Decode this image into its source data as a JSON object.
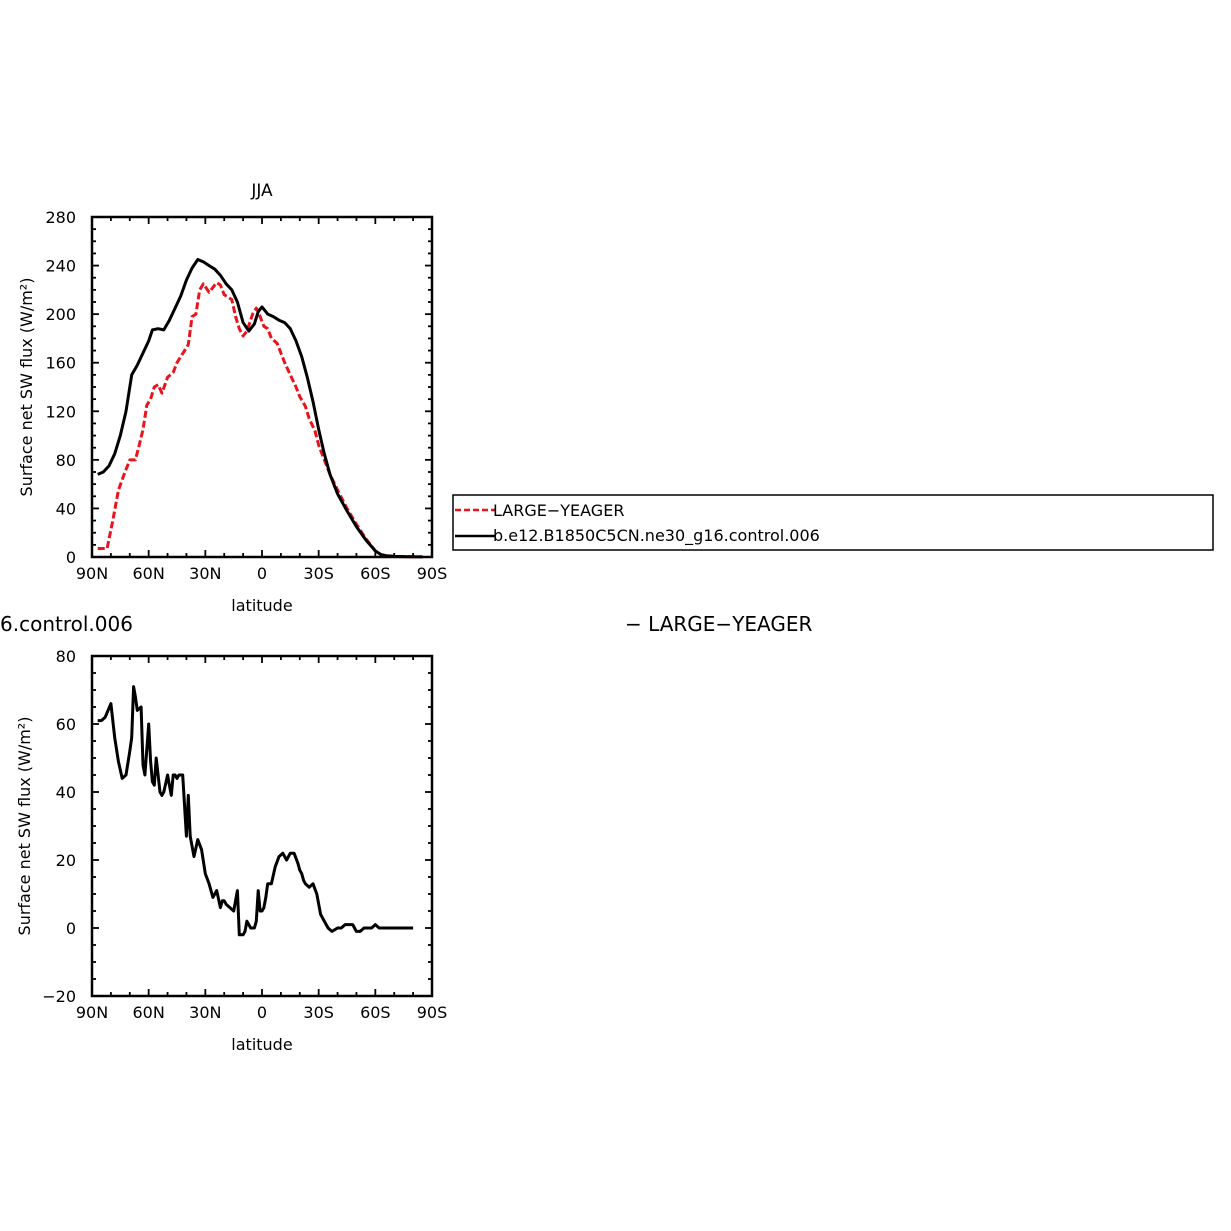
{
  "chart_data": [
    {
      "type": "line",
      "title": "JJA",
      "xlabel": "latitude",
      "ylabel": "Surface net SW flux (W/m²)",
      "xlim": [
        90,
        -90
      ],
      "ylim": [
        0,
        280
      ],
      "xticks": [
        90,
        60,
        30,
        0,
        -30,
        -60,
        -90
      ],
      "xtick_labels": [
        "90N",
        "60N",
        "30N",
        "0",
        "30S",
        "60S",
        "90S"
      ],
      "yticks": [
        0,
        40,
        80,
        120,
        160,
        200,
        240,
        280
      ],
      "ytick_labels": [
        "0",
        "40",
        "80",
        "120",
        "160",
        "200",
        "240",
        "280"
      ],
      "legend_position": "right, outside",
      "series": [
        {
          "name": "LARGE−YEAGER",
          "color": "#e8141e",
          "style": "dashed",
          "x": [
            87,
            82,
            79,
            76,
            73,
            70,
            67,
            65,
            63,
            61,
            59,
            57,
            55,
            53,
            50,
            47,
            45,
            43,
            41,
            39,
            37,
            35,
            33,
            31,
            28,
            26,
            24,
            22,
            20,
            18,
            16,
            14,
            12,
            10,
            8,
            5,
            3,
            1,
            -1,
            -3,
            -5,
            -8,
            -10,
            -12,
            -15,
            -18,
            -20,
            -23,
            -25,
            -28,
            -30,
            -33,
            -36,
            -40,
            -45,
            -50,
            -55,
            -60,
            -63,
            -66,
            -70,
            -75,
            -80,
            -85
          ],
          "y": [
            7,
            7,
            30,
            55,
            68,
            80,
            80,
            92,
            105,
            125,
            130,
            140,
            142,
            135,
            148,
            152,
            160,
            165,
            170,
            175,
            198,
            200,
            220,
            225,
            218,
            222,
            226,
            224,
            216,
            214,
            212,
            198,
            188,
            182,
            186,
            200,
            205,
            198,
            190,
            188,
            180,
            176,
            168,
            160,
            150,
            140,
            132,
            124,
            114,
            104,
            92,
            80,
            68,
            55,
            40,
            27,
            15,
            5,
            2,
            1,
            0.5,
            0.3,
            0.2,
            0.1
          ]
        },
        {
          "name": "b.e12.B1850C5CN.ne30_g16.control.006",
          "color": "#000000",
          "style": "solid",
          "x": [
            87,
            84,
            81,
            78,
            75,
            72,
            69,
            66,
            63,
            60,
            58,
            55,
            52,
            49,
            46,
            43,
            40,
            37,
            34,
            31,
            28,
            25,
            22,
            19,
            16,
            13,
            10,
            7,
            4,
            2,
            0,
            -3,
            -6,
            -9,
            -12,
            -15,
            -18,
            -21,
            -24,
            -27,
            -30,
            -33,
            -36,
            -40,
            -45,
            -50,
            -55,
            -60,
            -63,
            -66,
            -70,
            -75,
            -80,
            -85
          ],
          "y": [
            68,
            70,
            75,
            85,
            100,
            120,
            150,
            158,
            168,
            178,
            187,
            188,
            187,
            195,
            205,
            215,
            228,
            238,
            245,
            243,
            240,
            237,
            232,
            225,
            220,
            210,
            193,
            186,
            192,
            202,
            206,
            200,
            198,
            195,
            193,
            188,
            178,
            165,
            148,
            128,
            105,
            85,
            68,
            52,
            38,
            25,
            14,
            5,
            2,
            1,
            0.5,
            0.3,
            0.2,
            0.1
          ]
        }
      ]
    },
    {
      "type": "line",
      "title": "",
      "xlabel": "latitude",
      "ylabel": "Surface net SW flux (W/m²)",
      "xlim": [
        90,
        -90
      ],
      "ylim": [
        -20,
        80
      ],
      "xticks": [
        90,
        60,
        30,
        0,
        -30,
        -60,
        -90
      ],
      "xtick_labels": [
        "90N",
        "60N",
        "30N",
        "0",
        "30S",
        "60S",
        "90S"
      ],
      "yticks": [
        -20,
        0,
        20,
        40,
        60,
        80
      ],
      "ytick_labels": [
        "−20",
        "0",
        "20",
        "40",
        "60",
        "80"
      ],
      "series": [
        {
          "color": "#000000",
          "style": "solid",
          "x": [
            87,
            85,
            83,
            80,
            78,
            76,
            74,
            72,
            70,
            69,
            68,
            67,
            66,
            64,
            63,
            62,
            60,
            59,
            58,
            57,
            56,
            54,
            53,
            52,
            50,
            49,
            48,
            47,
            46,
            45,
            44,
            42,
            40,
            39,
            38,
            37,
            36,
            34,
            32,
            30,
            28,
            26,
            24,
            22,
            21,
            20,
            19,
            17,
            15,
            13,
            12,
            11,
            10,
            9,
            8,
            6,
            4,
            3,
            2,
            1,
            0,
            -1,
            -2,
            -3,
            -5,
            -7,
            -9,
            -11,
            -13,
            -15,
            -17,
            -19,
            -20,
            -21,
            -22,
            -23,
            -25,
            -27,
            -29,
            -31,
            -33,
            -35,
            -37,
            -40,
            -42,
            -44,
            -46,
            -48,
            -50,
            -52,
            -54,
            -56,
            -58,
            -60,
            -62,
            -64,
            -66,
            -68,
            -70,
            -72,
            -74,
            -76,
            -78,
            -80
          ],
          "y": [
            61,
            61,
            62,
            66,
            56,
            49,
            44,
            45,
            52,
            56,
            71,
            68,
            64,
            65,
            48,
            45,
            60,
            49,
            43,
            42,
            50,
            40,
            39,
            40,
            45,
            42,
            39,
            45,
            45,
            44,
            45,
            45,
            27,
            39,
            27,
            24,
            21,
            26,
            23,
            16,
            13,
            9,
            11,
            6,
            8,
            8,
            7,
            6,
            5,
            11,
            -2,
            -2,
            -2,
            -1,
            2,
            0,
            0,
            2,
            11,
            5,
            5,
            6,
            9,
            13,
            13,
            18,
            21,
            22,
            20,
            22,
            22,
            19,
            17,
            16,
            14,
            13,
            12,
            13,
            10,
            4,
            2,
            0,
            -1,
            0,
            0,
            1,
            1,
            1,
            -1,
            -1,
            0,
            0,
            0,
            1,
            0,
            0,
            0,
            0,
            0,
            0,
            0,
            0,
            0,
            0
          ]
        }
      ]
    }
  ],
  "legend": {
    "items": [
      {
        "label": "LARGE−YEAGER",
        "color": "#e8141e",
        "style": "dashed"
      },
      {
        "label": "b.e12.B1850C5CN.ne30_g16.control.006",
        "color": "#000000",
        "style": "solid"
      }
    ]
  },
  "overflow_text": {
    "left_fragment": "6.control.006",
    "right_fragment": "− LARGE−YEAGER"
  }
}
